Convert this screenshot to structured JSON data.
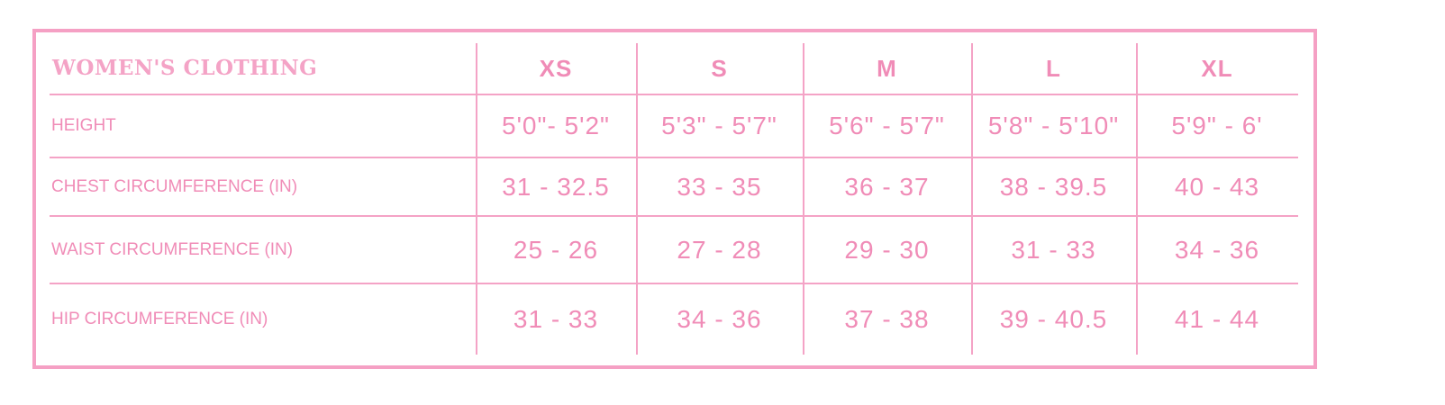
{
  "table": {
    "title": "WOMEN'S CLOTHING",
    "sizes": [
      "XS",
      "S",
      "M",
      "L",
      "XL"
    ],
    "rows": [
      {
        "label": "HEIGHT",
        "values": [
          "5'0\"- 5'2\"",
          "5'3\" - 5'7\"",
          "5'6\" - 5'7\"",
          "5'8\" - 5'10\"",
          "5'9\" - 6'"
        ]
      },
      {
        "label": "CHEST CIRCUMFERENCE (IN)",
        "values": [
          "31 - 32.5",
          "33 - 35",
          "36 - 37",
          "38 - 39.5",
          "40 - 43"
        ]
      },
      {
        "label": "WAIST CIRCUMFERENCE (IN)",
        "values": [
          "25 - 26",
          "27 - 28",
          "29 - 30",
          "31 - 33",
          "34 - 36"
        ]
      },
      {
        "label": "HIP CIRCUMFERENCE (IN)",
        "values": [
          "31 - 33",
          "34 - 36",
          "37 - 38",
          "39 - 40.5",
          "41 - 44"
        ]
      }
    ],
    "color": "#f08cb7"
  }
}
